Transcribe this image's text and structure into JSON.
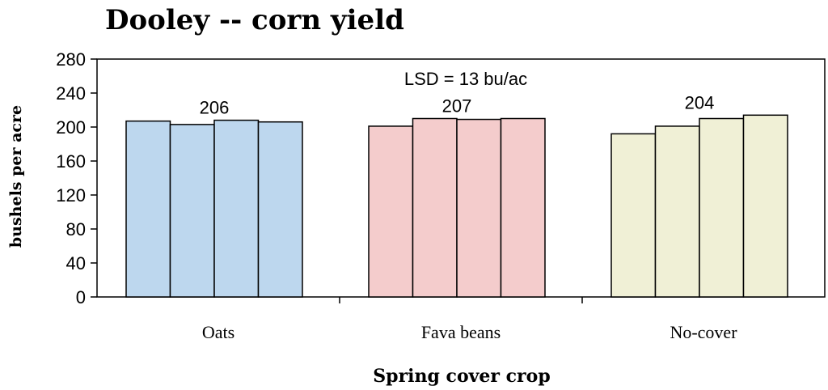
{
  "chart_data": {
    "type": "bar",
    "title": "Dooley -- corn yield",
    "xlabel": "Spring cover crop",
    "ylabel": "bushels per acre",
    "ylim": [
      0,
      280
    ],
    "yticks": [
      0,
      40,
      80,
      120,
      160,
      200,
      240,
      280
    ],
    "categories": [
      "Oats",
      "Fava beans",
      "No-cover"
    ],
    "group_values": [
      [
        207,
        203,
        208,
        206
      ],
      [
        201,
        210,
        209,
        210
      ],
      [
        192,
        201,
        210,
        214
      ]
    ],
    "group_labels": [
      "206",
      "207",
      "204"
    ],
    "colors": [
      "#bdd7ee",
      "#f4cccc",
      "#f0f0d6"
    ],
    "annotation": "LSD = 13 bu/ac",
    "grid": false,
    "legend": "none"
  }
}
